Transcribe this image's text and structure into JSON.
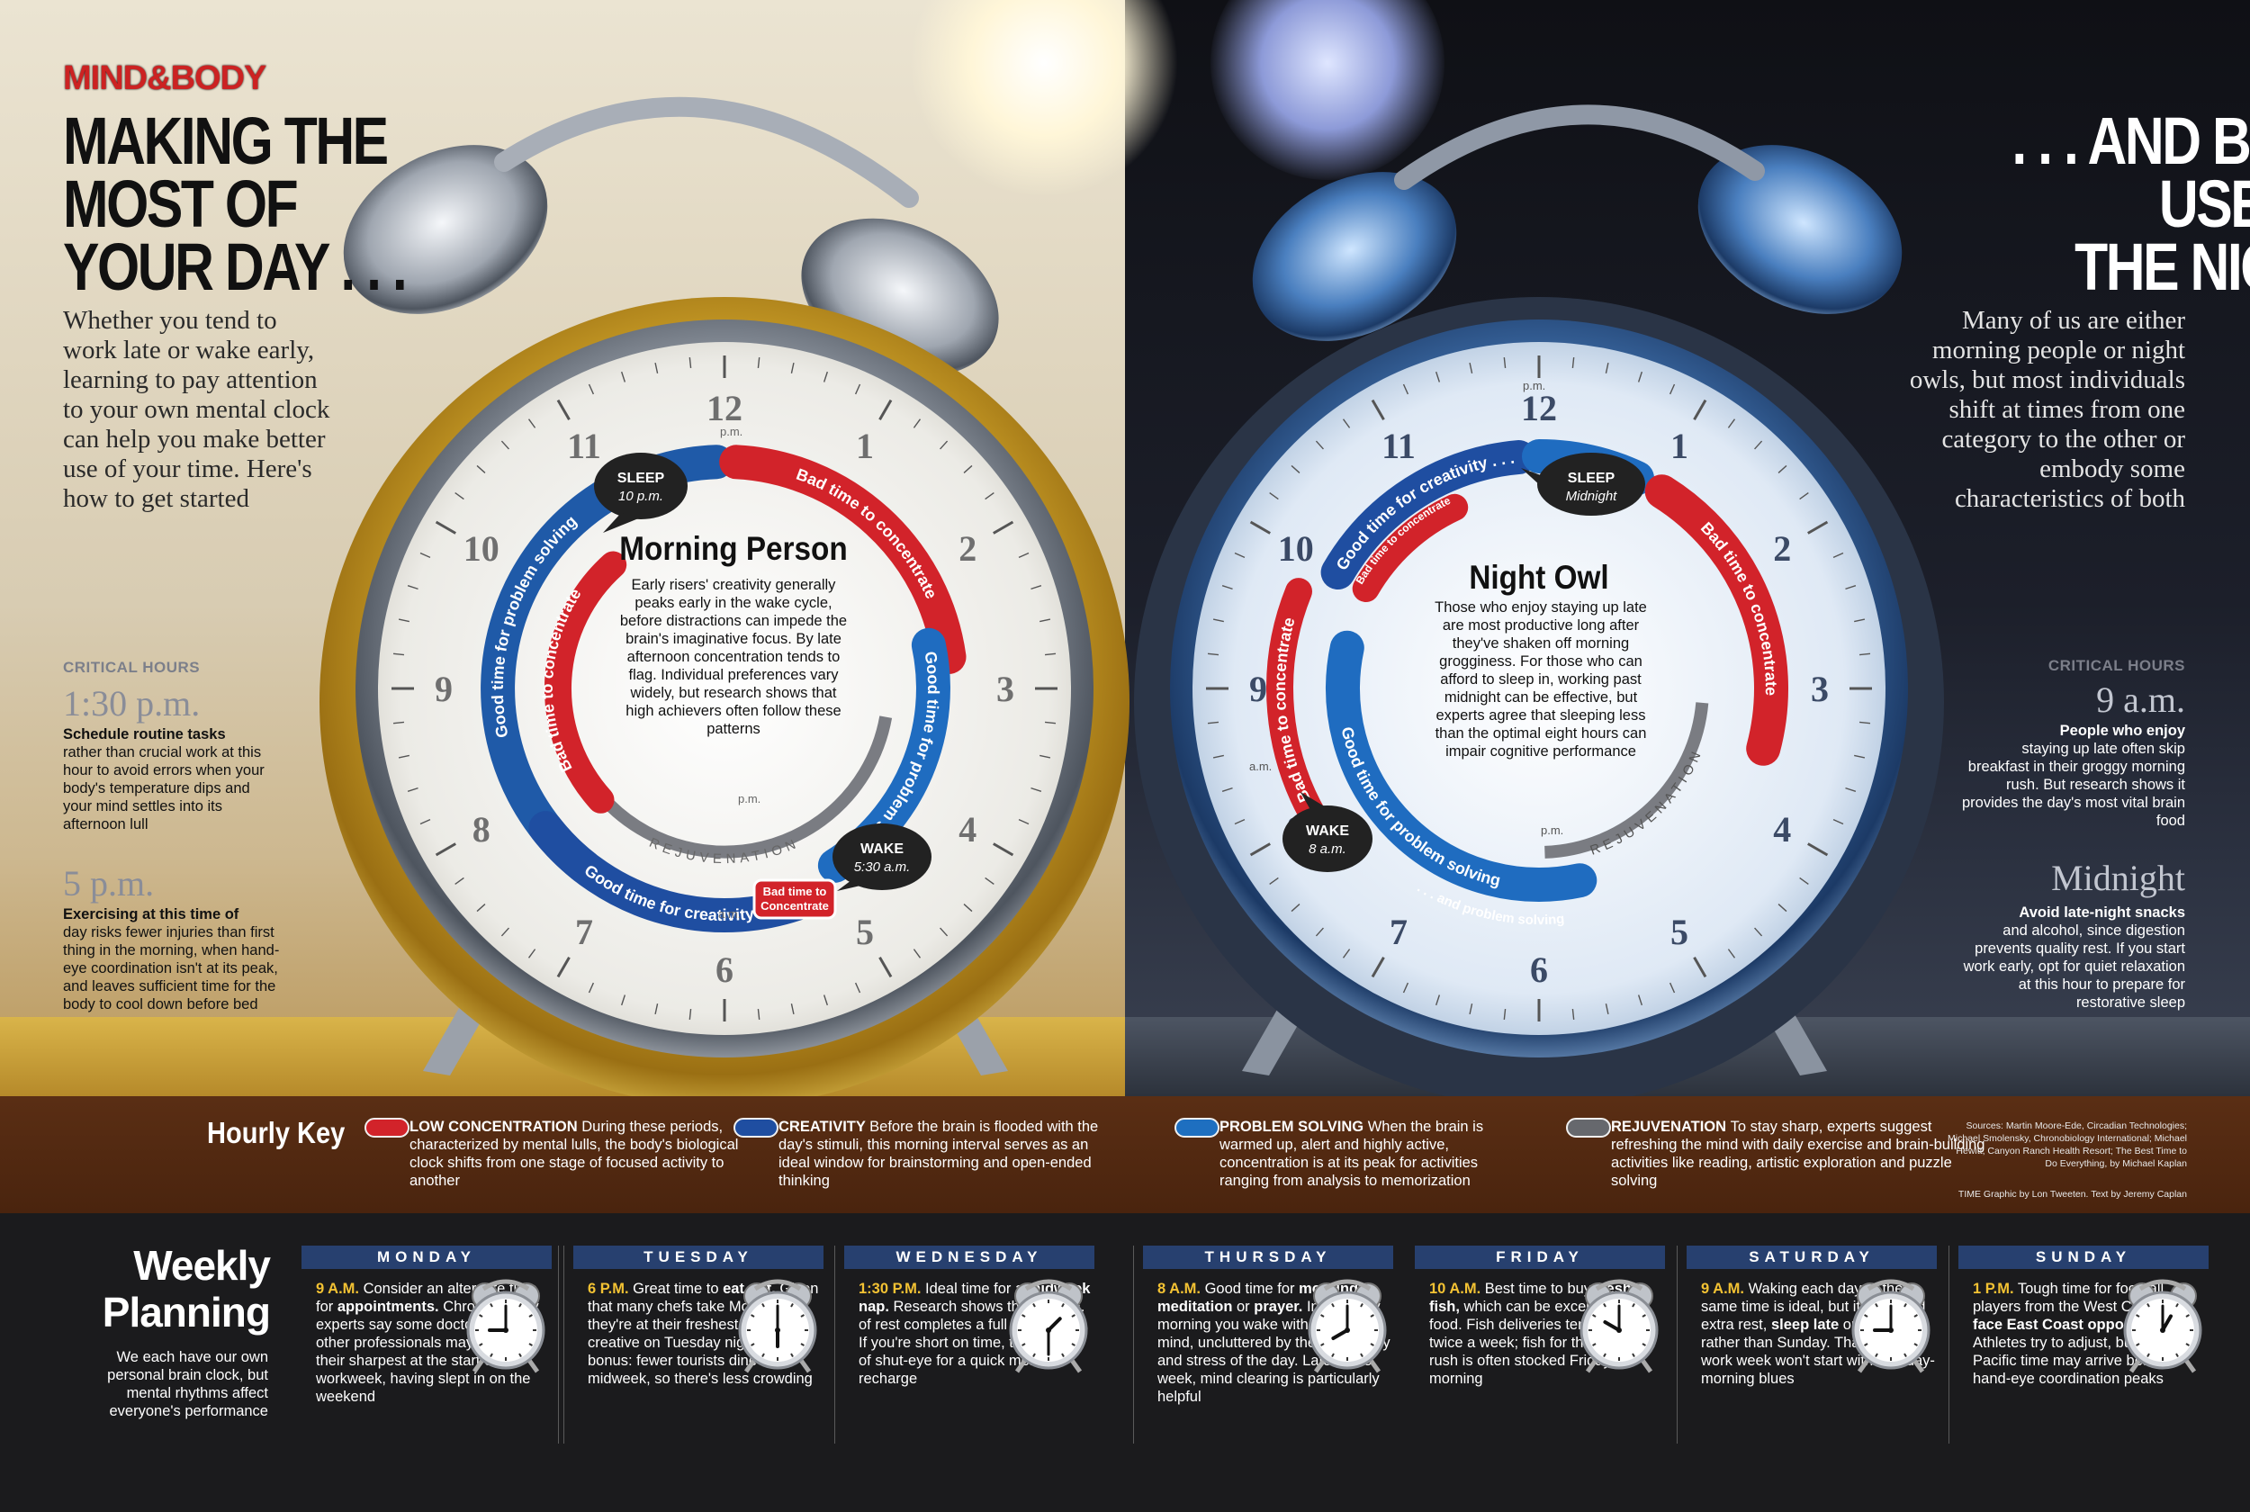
{
  "brand": {
    "part1": "MIND",
    "amp": "&",
    "part2": "BODY"
  },
  "left": {
    "headline": [
      "MAKING THE",
      "MOST OF",
      "YOUR DAY . . ."
    ],
    "intro": "Whether you tend to work late or wake early, learning to pay attention to your own mental clock can help you make better use of your time. Here's how to get started",
    "critical_label": "CRITICAL HOURS",
    "hours": [
      {
        "time": "1:30 p.m.",
        "bold": "Schedule routine tasks",
        "text": "rather than crucial work at this hour to avoid errors when your body's temperature dips and your mind settles into its afternoon lull"
      },
      {
        "time": "5 p.m.",
        "bold": "Exercising at this time of",
        "text": "day risks fewer injuries than first thing in the morning, when hand-eye coordination isn't at its peak, and leaves sufficient time for the body to cool down before bed"
      }
    ]
  },
  "right": {
    "headline": [
      ". . . AND BEST",
      "USE OF",
      "THE NIGHT"
    ],
    "intro": "Many of us are either morning people or night owls, but most individuals shift at times from one category to the other or embody some characteristics of both",
    "critical_label": "CRITICAL HOURS",
    "hours": [
      {
        "time": "9 a.m.",
        "bold": "People who enjoy",
        "text": "staying up late often skip breakfast in their groggy morning rush. But research shows it provides the day's most vital brain food"
      },
      {
        "time": "Midnight",
        "bold": "Avoid late-night snacks",
        "text": "and alcohol, since digestion prevents quality rest. If you start work early, opt for quiet relaxation at this hour to prepare for restorative sleep"
      }
    ]
  },
  "clocks": {
    "numerals": [
      "12",
      "1",
      "2",
      "3",
      "4",
      "5",
      "6",
      "7",
      "8",
      "9",
      "10",
      "11"
    ],
    "rejuvenation": "REJUVENATION",
    "pm": "p.m.",
    "am": "a.m.",
    "morning": {
      "title": "Morning Person",
      "text": "Early risers' creativity generally peaks early in the wake cycle, before distractions can impede the brain's imaginative focus. By late afternoon concentration tends to flag. Individual preferences vary widely, but research shows that high achievers often follow these patterns",
      "sleep_label": "SLEEP",
      "sleep_time": "10 p.m.",
      "wake_label": "WAKE",
      "wake_time": "5:30 a.m.",
      "arcs": {
        "problem_outer": "Good time for problem solving",
        "bad_outer": "Bad time to concentrate",
        "problem_right": "Good time for problem solving",
        "creativity": "Good time for creativity",
        "bad_small": "Bad time to Concentrate",
        "bad_inner": "Bad time to concentrate"
      }
    },
    "night": {
      "title": "Night Owl",
      "text": "Those who enjoy staying up late are most productive long after they've shaken off morning grogginess. For those who can afford to sleep in, working past midnight can be effective, but experts agree that sleeping less than the optimal eight hours can impair cognitive performance",
      "sleep_label": "SLEEP",
      "sleep_time": "Midnight",
      "wake_label": "WAKE",
      "wake_time": "8 a.m.",
      "arcs": {
        "creativity": "Good time for creativity . . .",
        "problem_top": ". . . and problem solving",
        "bad_right": "Bad time to concentrate",
        "bad_small": "Bad time to concentrate",
        "bad_left": "Bad time to concentrate",
        "problem_inner": "Good time for problem solving"
      }
    }
  },
  "key": {
    "title": "Hourly Key",
    "items": [
      {
        "color": "#d2232a",
        "bold": "LOW CONCENTRATION",
        "text": "During these periods, characterized by mental lulls, the body's biological clock shifts from one stage of focused activity to another"
      },
      {
        "color": "#1f4ea1",
        "bold": "CREATIVITY",
        "text": "Before the brain is flooded with the day's stimuli, this morning interval serves as an ideal window for brainstorming and open-ended thinking"
      },
      {
        "color": "#1e6fc0",
        "bold": "PROBLEM SOLVING",
        "text": "When the brain is warmed up, alert and highly active, concentration is at its peak for activities ranging from analysis to memorization"
      },
      {
        "color": "#66686d",
        "bold": "REJUVENATION",
        "text": "To stay sharp, experts suggest refreshing the mind with daily exercise and brain-building activities like reading, artistic exploration and puzzle solving"
      }
    ],
    "sources": "Sources: Martin Moore-Ede, Circadian Technologies; Michael Smolensky, Chronobiology International; Michael Hewitt, Canyon Ranch Health Resort; The Best Time to Do Everything, by Michael Kaplan",
    "credit": "TIME Graphic by Lon Tweeten. Text by Jeremy Caplan"
  },
  "weekly": {
    "title": [
      "Weekly",
      "Planning"
    ],
    "subtitle": "We each have our own personal brain clock, but mental rhythms affect everyone's performance",
    "days": [
      {
        "name": "MONDAY",
        "time": "9 A.M.",
        "text": "Consider an alternate time for appointments. Chronobiology experts say some doctors and other professionals may not be at their sharpest at the start of the workweek, having slept in on the weekend",
        "hour": 9,
        "minute": 0
      },
      {
        "name": "TUESDAY",
        "time": "6 P.M.",
        "text": "Great time to eat out. Given that many chefs take Monday off, they're at their freshest and most creative on Tuesday nights. A bonus: fewer tourists dine out midweek, so there's less crowding",
        "hour": 6,
        "minute": 0
      },
      {
        "name": "WEDNESDAY",
        "time": "1:30 P.M.",
        "text": "Ideal time for a midweek nap. Research shows that 90 min. of rest completes a full sleep cycle. If you're short on time, try 20 min. of shut-eye for a quick mental recharge",
        "hour": 1,
        "minute": 30
      },
      {
        "name": "THURSDAY",
        "time": "8 A.M.",
        "text": "Good time for morning meditation or prayer. In the early morning you wake with a clear mind, uncluttered by the complexity and stress of the day. Late in the week, mind clearing is particularly helpful",
        "hour": 8,
        "minute": 0
      },
      {
        "name": "FRIDAY",
        "time": "10 A.M.",
        "text": "Best time to buy fresh fish, which can be excellent brain food. Fish deliveries tend to arrive twice a week; fish for the weekend rush is often stocked Friday morning",
        "hour": 10,
        "minute": 0
      },
      {
        "name": "SATURDAY",
        "time": "9 A.M.",
        "text": "Waking each day at the same time is ideal, but if you need extra rest, sleep late on Saturday rather than Sunday. That way the work week won't start with Monday-morning blues",
        "hour": 9,
        "minute": 0
      },
      {
        "name": "SUNDAY",
        "time": "1 P.M.",
        "text": "Tough time for football players from the West Coast to face East Coast opponents. Athletes try to adjust, but 10 a.m. Pacific time may arrive before hand-eye coordination peaks",
        "hour": 1,
        "minute": 0
      }
    ]
  }
}
